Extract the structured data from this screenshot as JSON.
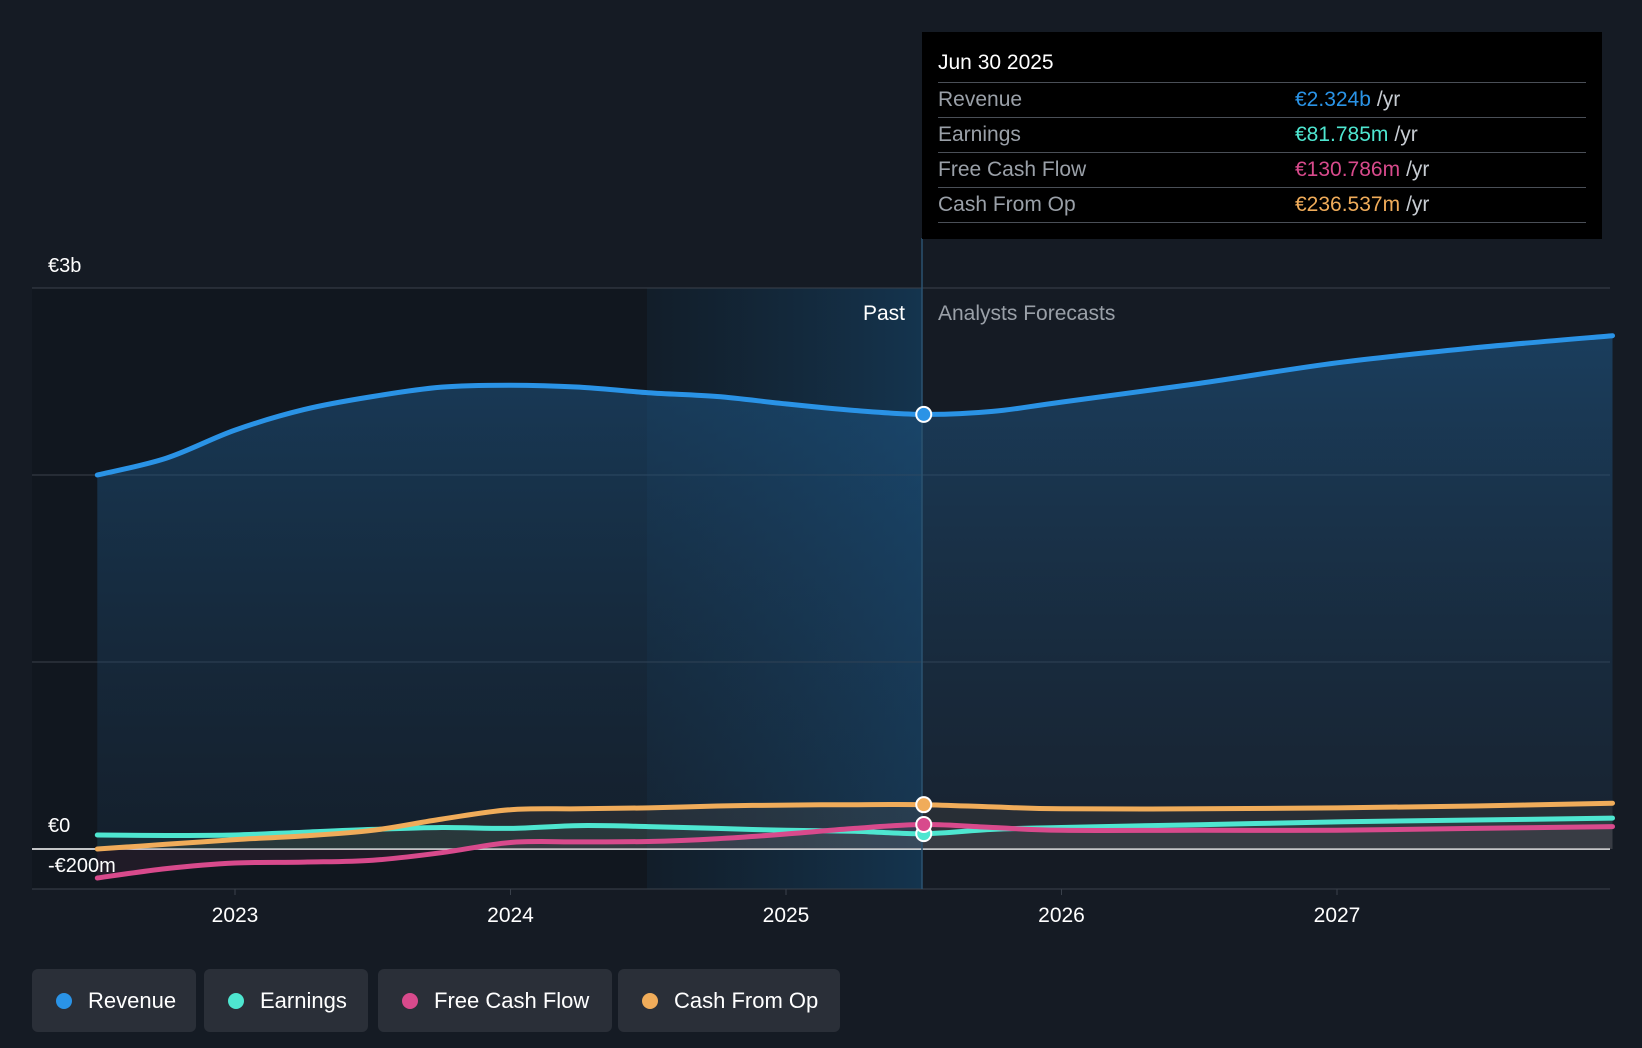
{
  "chart_data": {
    "type": "line",
    "title": "",
    "y_labels": {
      "top": "€3b",
      "zero": "€0",
      "bottom": "-€200m"
    },
    "ylim": [
      -200,
      3000
    ],
    "unit": "€m",
    "x_ticks": [
      "2023",
      "2024",
      "2025",
      "2026",
      "2027"
    ],
    "regions": {
      "past_label": "Past",
      "forecast_label": "Analysts Forecasts"
    },
    "divider_date": 2025.5,
    "series": [
      {
        "name": "Revenue",
        "color": "#2a93e6",
        "x": [
          2022.5,
          2022.75,
          2023.0,
          2023.25,
          2023.5,
          2023.75,
          2024.0,
          2024.25,
          2024.5,
          2024.75,
          2025.0,
          2025.25,
          2025.5,
          2025.75,
          2026.0,
          2026.5,
          2027.0,
          2027.5,
          2028.0
        ],
        "values": [
          2000,
          2090,
          2240,
          2350,
          2420,
          2470,
          2480,
          2470,
          2440,
          2420,
          2380,
          2345,
          2324,
          2340,
          2390,
          2490,
          2600,
          2680,
          2745
        ]
      },
      {
        "name": "Earnings",
        "color": "#4ee6d0",
        "x": [
          2022.5,
          2022.75,
          2023.0,
          2023.25,
          2023.5,
          2023.75,
          2024.0,
          2024.25,
          2024.5,
          2024.75,
          2025.0,
          2025.25,
          2025.5,
          2025.75,
          2026.0,
          2026.5,
          2027.0,
          2027.5,
          2028.0
        ],
        "values": [
          75,
          72,
          75,
          90,
          105,
          115,
          110,
          125,
          120,
          110,
          100,
          95,
          82,
          105,
          115,
          130,
          145,
          155,
          165
        ]
      },
      {
        "name": "Free Cash Flow",
        "color": "#d84a8c",
        "x": [
          2022.5,
          2022.75,
          2023.0,
          2023.25,
          2023.5,
          2023.75,
          2024.0,
          2024.25,
          2024.5,
          2024.75,
          2025.0,
          2025.25,
          2025.5,
          2025.75,
          2026.0,
          2026.5,
          2027.0,
          2027.5,
          2028.0
        ],
        "values": [
          -155,
          -105,
          -75,
          -70,
          -60,
          -20,
          35,
          38,
          40,
          55,
          80,
          110,
          131,
          115,
          100,
          100,
          100,
          110,
          120
        ]
      },
      {
        "name": "Cash From Op",
        "color": "#f0ac5a",
        "x": [
          2022.5,
          2022.75,
          2023.0,
          2023.25,
          2023.5,
          2023.75,
          2024.0,
          2024.25,
          2024.5,
          2024.75,
          2025.0,
          2025.25,
          2025.5,
          2025.75,
          2026.0,
          2026.5,
          2027.0,
          2027.5,
          2028.0
        ],
        "values": [
          0,
          25,
          50,
          70,
          100,
          160,
          210,
          215,
          220,
          230,
          235,
          237,
          237,
          225,
          215,
          215,
          220,
          230,
          245
        ]
      }
    ],
    "highlight_x": 2025.5,
    "legend_placement": "bottom-left"
  },
  "tooltip": {
    "date": "Jun 30 2025",
    "rows": [
      {
        "label": "Revenue",
        "value": "€2.324b",
        "unit": "/yr",
        "color": "#2a93e6"
      },
      {
        "label": "Earnings",
        "value": "€81.785m",
        "unit": "/yr",
        "color": "#4ee6d0"
      },
      {
        "label": "Free Cash Flow",
        "value": "€130.786m",
        "unit": "/yr",
        "color": "#d84a8c"
      },
      {
        "label": "Cash From Op",
        "value": "€236.537m",
        "unit": "/yr",
        "color": "#f0ac5a"
      }
    ]
  },
  "legend": {
    "items": [
      {
        "label": "Revenue",
        "color": "#2a93e6"
      },
      {
        "label": "Earnings",
        "color": "#4ee6d0"
      },
      {
        "label": "Free Cash Flow",
        "color": "#d84a8c"
      },
      {
        "label": "Cash From Op",
        "color": "#f0ac5a"
      }
    ]
  }
}
